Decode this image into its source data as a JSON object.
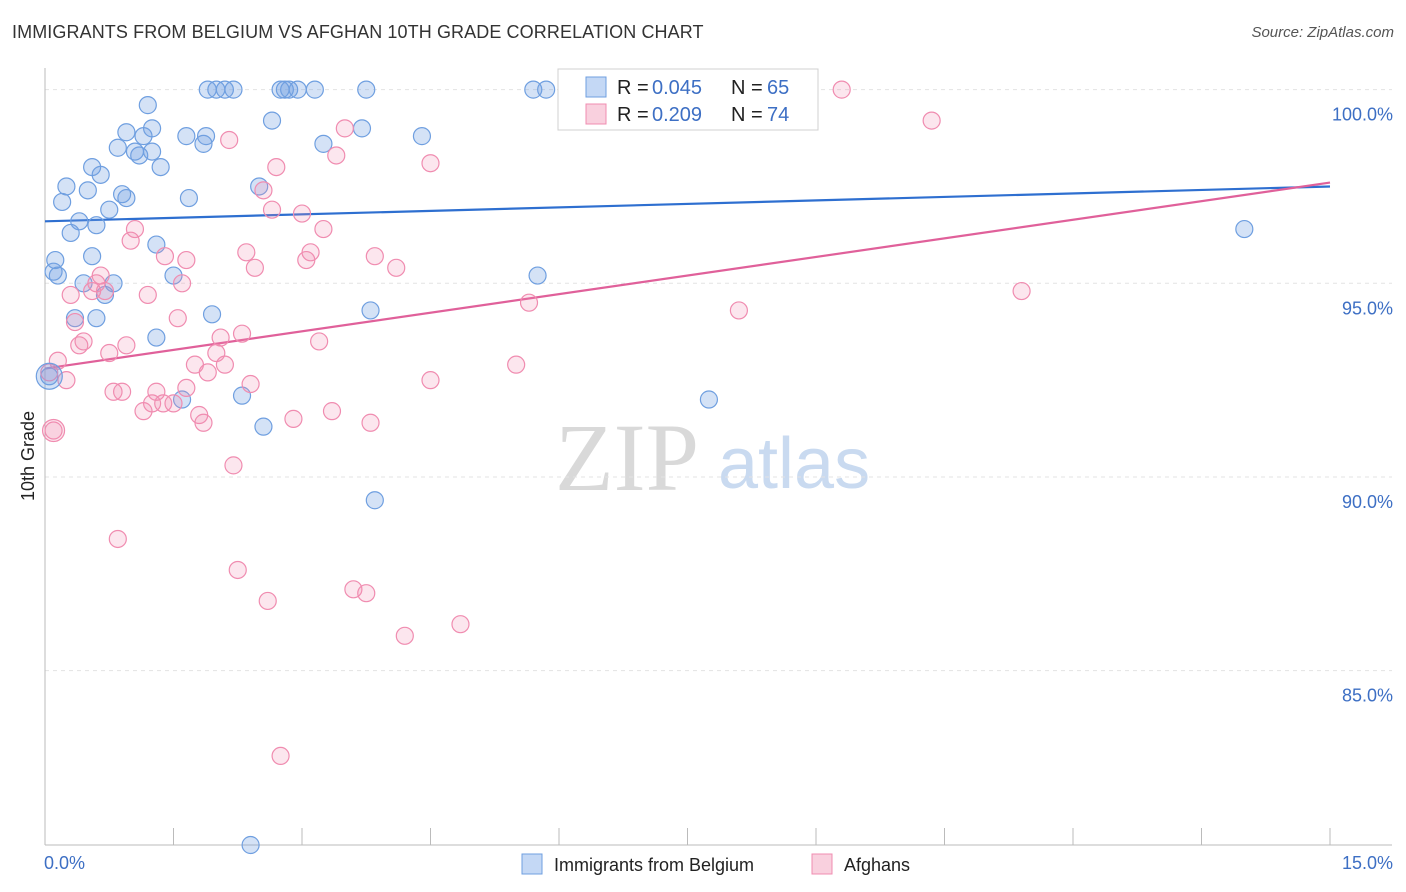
{
  "title": "IMMIGRANTS FROM BELGIUM VS AFGHAN 10TH GRADE CORRELATION CHART",
  "source": "Source: ZipAtlas.com",
  "watermark": {
    "zip": "ZIP",
    "atlas": "atlas"
  },
  "colors": {
    "blue": "#6f9fe0",
    "blue_line": "#2e6fd0",
    "pink": "#f08cb0",
    "pink_line": "#e0609a",
    "tick_text": "#3d6fc4"
  },
  "stats": [
    {
      "r_label": "R =",
      "r_value": "0.045",
      "n_label": "N =",
      "n_value": "65"
    },
    {
      "r_label": "R =",
      "r_value": "0.209",
      "n_label": "N =",
      "n_value": "74"
    }
  ],
  "chart_data": {
    "type": "scatter",
    "title": "IMMIGRANTS FROM BELGIUM VS AFGHAN 10TH GRADE CORRELATION CHART",
    "xlabel": "",
    "ylabel": "10th Grade",
    "xlim": [
      0,
      15
    ],
    "ylim": [
      80.5,
      100.3
    ],
    "x_tick_labels": [
      "0.0%",
      "15.0%"
    ],
    "y_ticks": [
      85,
      90,
      95,
      100
    ],
    "y_tick_labels": [
      "85.0%",
      "90.0%",
      "95.0%",
      "100.0%"
    ],
    "grid": true,
    "legend": "bottom",
    "series": [
      {
        "name": "Immigrants from Belgium",
        "color": "#6f9fe0",
        "trend": {
          "x": [
            0,
            15
          ],
          "y": [
            96.6,
            97.5
          ]
        },
        "points": [
          [
            0.05,
            92.6
          ],
          [
            0.1,
            95.3
          ],
          [
            0.12,
            95.6
          ],
          [
            0.15,
            95.2
          ],
          [
            0.2,
            97.1
          ],
          [
            0.25,
            97.5
          ],
          [
            0.3,
            96.3
          ],
          [
            0.35,
            94.1
          ],
          [
            0.4,
            96.6
          ],
          [
            0.45,
            95.0
          ],
          [
            0.5,
            97.4
          ],
          [
            0.55,
            95.7
          ],
          [
            0.55,
            98.0
          ],
          [
            0.6,
            94.1
          ],
          [
            0.6,
            96.5
          ],
          [
            0.65,
            97.8
          ],
          [
            0.7,
            94.7
          ],
          [
            0.75,
            96.9
          ],
          [
            0.8,
            95.0
          ],
          [
            0.85,
            98.5
          ],
          [
            0.9,
            97.3
          ],
          [
            0.95,
            98.9
          ],
          [
            0.95,
            97.2
          ],
          [
            1.05,
            98.4
          ],
          [
            1.1,
            98.3
          ],
          [
            1.15,
            98.8
          ],
          [
            1.2,
            99.6
          ],
          [
            1.25,
            98.4
          ],
          [
            1.25,
            99.0
          ],
          [
            1.3,
            96.0
          ],
          [
            1.3,
            93.6
          ],
          [
            1.35,
            98.0
          ],
          [
            1.5,
            95.2
          ],
          [
            1.6,
            92.0
          ],
          [
            1.65,
            98.8
          ],
          [
            1.68,
            97.2
          ],
          [
            1.85,
            98.6
          ],
          [
            1.88,
            98.8
          ],
          [
            1.9,
            100.0
          ],
          [
            1.95,
            94.2
          ],
          [
            2.0,
            100.0
          ],
          [
            2.1,
            100.0
          ],
          [
            2.2,
            100.0
          ],
          [
            2.3,
            92.1
          ],
          [
            2.4,
            80.5
          ],
          [
            2.5,
            97.5
          ],
          [
            2.55,
            91.3
          ],
          [
            2.65,
            99.2
          ],
          [
            2.8,
            100.0
          ],
          [
            2.85,
            100.0
          ],
          [
            2.95,
            100.0
          ],
          [
            3.15,
            100.0
          ],
          [
            3.25,
            98.6
          ],
          [
            3.7,
            99.0
          ],
          [
            3.75,
            100.0
          ],
          [
            3.8,
            94.3
          ],
          [
            3.85,
            89.4
          ],
          [
            4.4,
            98.8
          ],
          [
            5.7,
            100.0
          ],
          [
            5.75,
            95.2
          ],
          [
            5.85,
            100.0
          ],
          [
            6.1,
            100.0
          ],
          [
            7.75,
            92.0
          ],
          [
            14.0,
            96.4
          ],
          [
            2.75,
            100.0
          ]
        ]
      },
      {
        "name": "Afghans",
        "color": "#f08cb0",
        "trend": {
          "x": [
            0,
            15
          ],
          "y": [
            92.8,
            97.6
          ]
        },
        "points": [
          [
            0.05,
            92.7
          ],
          [
            0.1,
            91.2
          ],
          [
            0.15,
            93.0
          ],
          [
            0.25,
            92.5
          ],
          [
            0.3,
            94.7
          ],
          [
            0.35,
            94.0
          ],
          [
            0.4,
            93.4
          ],
          [
            0.45,
            93.5
          ],
          [
            0.55,
            94.8
          ],
          [
            0.6,
            95.0
          ],
          [
            0.65,
            95.2
          ],
          [
            0.7,
            94.8
          ],
          [
            0.75,
            93.2
          ],
          [
            0.8,
            92.2
          ],
          [
            0.85,
            88.4
          ],
          [
            0.9,
            92.2
          ],
          [
            0.95,
            93.4
          ],
          [
            1.0,
            96.1
          ],
          [
            1.05,
            96.4
          ],
          [
            1.15,
            91.7
          ],
          [
            1.2,
            94.7
          ],
          [
            1.25,
            91.9
          ],
          [
            1.3,
            92.2
          ],
          [
            1.38,
            91.9
          ],
          [
            1.4,
            95.7
          ],
          [
            1.5,
            91.9
          ],
          [
            1.55,
            94.1
          ],
          [
            1.6,
            95.0
          ],
          [
            1.65,
            95.6
          ],
          [
            1.65,
            92.3
          ],
          [
            1.75,
            92.9
          ],
          [
            1.8,
            91.6
          ],
          [
            1.85,
            91.4
          ],
          [
            1.9,
            92.7
          ],
          [
            2.0,
            93.2
          ],
          [
            2.05,
            93.6
          ],
          [
            2.1,
            92.9
          ],
          [
            2.15,
            98.7
          ],
          [
            2.2,
            90.3
          ],
          [
            2.25,
            87.6
          ],
          [
            2.3,
            93.7
          ],
          [
            2.35,
            95.8
          ],
          [
            2.4,
            92.4
          ],
          [
            2.45,
            95.4
          ],
          [
            2.55,
            97.4
          ],
          [
            2.6,
            86.8
          ],
          [
            2.65,
            96.9
          ],
          [
            2.7,
            98.0
          ],
          [
            2.75,
            82.8
          ],
          [
            2.9,
            91.5
          ],
          [
            3.0,
            96.8
          ],
          [
            3.05,
            95.6
          ],
          [
            3.1,
            95.8
          ],
          [
            3.2,
            93.5
          ],
          [
            3.25,
            96.4
          ],
          [
            3.35,
            91.7
          ],
          [
            3.4,
            98.3
          ],
          [
            3.5,
            99.0
          ],
          [
            3.6,
            87.1
          ],
          [
            3.75,
            87.0
          ],
          [
            3.8,
            91.4
          ],
          [
            3.85,
            95.7
          ],
          [
            4.1,
            95.4
          ],
          [
            4.2,
            85.9
          ],
          [
            4.5,
            92.5
          ],
          [
            4.5,
            98.1
          ],
          [
            4.85,
            86.2
          ],
          [
            5.5,
            92.9
          ],
          [
            5.65,
            94.5
          ],
          [
            6.9,
            100.0
          ],
          [
            8.1,
            94.3
          ],
          [
            9.3,
            100.0
          ],
          [
            10.35,
            99.2
          ],
          [
            11.4,
            94.8
          ]
        ]
      }
    ]
  }
}
